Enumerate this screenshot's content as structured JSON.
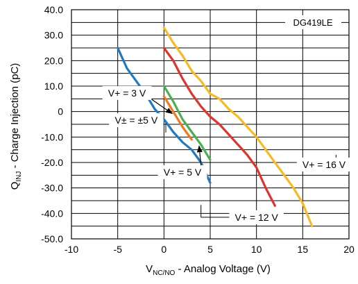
{
  "chart_data": {
    "type": "line",
    "xlabel": {
      "main": "V",
      "sub": "NC/NO",
      "rest": " - Analog Voltage (V)"
    },
    "ylabel": {
      "main": "Q",
      "sub": "INJ",
      "rest": " - Charge Injection (pC)"
    },
    "xlim": [
      -10,
      20
    ],
    "ylim": [
      -50,
      40
    ],
    "xticks": [
      -10,
      -5,
      0,
      5,
      10,
      15,
      20
    ],
    "xtick_labels": [
      "-10",
      "-5",
      "0",
      "5",
      "10",
      "15",
      "20"
    ],
    "yticks": [
      -50,
      -40,
      -30,
      -20,
      -10,
      0,
      10,
      20,
      30,
      40
    ],
    "ytick_labels": [
      "-50.0",
      "-40.0",
      "-30.0",
      "-20.0",
      "-10.0",
      "0",
      "10.0",
      "20.0",
      "30.0",
      "40.0"
    ],
    "grid": true,
    "badge": "DG419LE",
    "series": [
      {
        "color": "#1f7ac3",
        "points": [
          [
            -5,
            25
          ],
          [
            -4,
            17
          ],
          [
            -3,
            12
          ],
          [
            -2,
            7
          ],
          [
            -1,
            1
          ],
          [
            0,
            -3
          ],
          [
            1,
            -8
          ],
          [
            2,
            -12
          ],
          [
            3,
            -15
          ],
          [
            4,
            -20
          ],
          [
            5,
            -28
          ]
        ]
      },
      {
        "color": "#4caf50",
        "points": [
          [
            0,
            10
          ],
          [
            1,
            4
          ],
          [
            2,
            -3
          ],
          [
            3,
            -8
          ],
          [
            4,
            -13
          ],
          [
            5,
            -19
          ]
        ]
      },
      {
        "color": "#f07820",
        "points": [
          [
            0,
            6
          ],
          [
            1,
            0
          ],
          [
            2,
            -6
          ],
          [
            3,
            -11
          ]
        ]
      },
      {
        "color": "#e0332d",
        "points": [
          [
            0,
            25
          ],
          [
            1,
            20
          ],
          [
            2,
            13
          ],
          [
            3,
            7
          ],
          [
            4,
            2
          ],
          [
            5,
            -2
          ],
          [
            6,
            -5
          ],
          [
            7,
            -9
          ],
          [
            8,
            -13
          ],
          [
            9,
            -17
          ],
          [
            10,
            -22
          ],
          [
            11,
            -30
          ],
          [
            12,
            -37
          ]
        ]
      },
      {
        "color": "#f7b924",
        "points": [
          [
            0,
            33
          ],
          [
            1,
            27
          ],
          [
            2,
            22
          ],
          [
            3,
            16
          ],
          [
            4,
            12
          ],
          [
            5,
            7
          ],
          [
            6,
            5
          ],
          [
            7,
            1
          ],
          [
            8,
            -2
          ],
          [
            9,
            -6
          ],
          [
            10,
            -10
          ],
          [
            11,
            -15
          ],
          [
            12,
            -20
          ],
          [
            13,
            -25
          ],
          [
            14,
            -30
          ],
          [
            15,
            -36
          ],
          [
            16,
            -45
          ]
        ]
      }
    ],
    "annotations": [
      {
        "label": "V+ = 3 V",
        "box": [
          -4.0,
          7.3
        ],
        "arrow_to": [
          0.9,
          -0.8
        ]
      },
      {
        "label": "V± = ±5 V",
        "box": [
          -3.0,
          -3.4
        ],
        "arrow_to": null
      },
      {
        "label": "V+ = 5 V",
        "box": [
          2.0,
          -23.8
        ],
        "arrow_to": [
          3.8,
          -13.5
        ]
      },
      {
        "label": "V+ = 12 V",
        "box": [
          10.0,
          -41.5
        ],
        "arrow_to": null
      },
      {
        "label": "V+ = 16 V",
        "box": [
          17.3,
          -20.8
        ],
        "arrow_to": null
      }
    ],
    "leaders": [
      {
        "from": [
          0.2,
          -8.2
        ],
        "to": [
          0.2,
          -4.6
        ]
      },
      {
        "from": [
          4.0,
          -36.7
        ],
        "to": [
          4.0,
          -41.5
        ]
      },
      {
        "from": [
          4.0,
          -41.5
        ],
        "to": [
          8.6,
          -41.5
        ]
      },
      {
        "from": [
          15.1,
          -20.8
        ],
        "to": [
          15.9,
          -20.8
        ]
      },
      {
        "from": [
          18.6,
          -17.0
        ],
        "to": [
          18.6,
          -18.6
        ]
      }
    ]
  }
}
